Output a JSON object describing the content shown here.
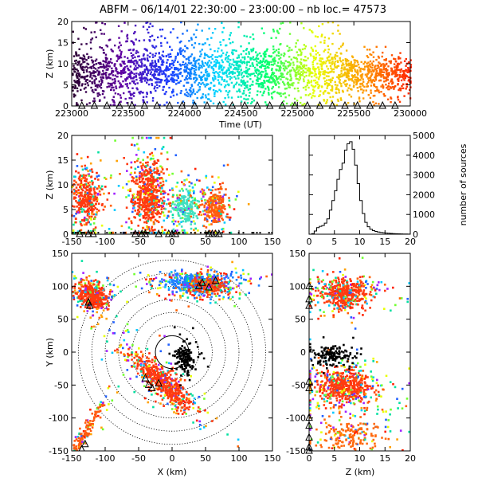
{
  "title": "ABFM – 06/14/01 22:30:00 – 23:00:00 – nb loc.=  47573",
  "chart_data": [
    {
      "id": "time-height",
      "type": "scatter",
      "xlabel": "Time (UT)",
      "ylabel": "Z (km)",
      "xlim": [
        223000,
        230000
      ],
      "ylim": [
        0,
        20
      ],
      "xticks": [
        "223000",
        "223500",
        "224000",
        "224500",
        "225000",
        "225500",
        "230000"
      ],
      "yticks": [
        "0",
        "5",
        "10",
        "15",
        "20"
      ],
      "color_by": "time",
      "colormap": [
        "#2a0030",
        "#6000a0",
        "#1a3cff",
        "#00d8ff",
        "#00ff70",
        "#e8ff00",
        "#ff9a00",
        "#ff2000"
      ]
    },
    {
      "id": "xz-projection",
      "type": "scatter",
      "ylabel": "Z (km)",
      "xlim": [
        -150,
        150
      ],
      "ylim": [
        0,
        20
      ],
      "xticks": [
        "-150",
        "-100",
        "-50",
        "0",
        "50",
        "100",
        "150"
      ],
      "yticks": [
        "0",
        "5",
        "10",
        "15",
        "20"
      ]
    },
    {
      "id": "height-histogram",
      "type": "bar",
      "ylabel": "number of sources",
      "xlim": [
        0,
        20
      ],
      "ylim": [
        0,
        5000
      ],
      "xticks": [
        "0",
        "5",
        "10",
        "15",
        "20"
      ],
      "yticks": [
        "0",
        "1000",
        "2000",
        "3000",
        "4000",
        "5000"
      ],
      "bin_width_km": 0.5,
      "counts": [
        0,
        30,
        160,
        330,
        400,
        440,
        560,
        780,
        1220,
        1700,
        2200,
        2780,
        3280,
        3600,
        4260,
        4580,
        4680,
        4300,
        3500,
        2560,
        1700,
        1050,
        600,
        380,
        250,
        180,
        140,
        110,
        90,
        75,
        60,
        48,
        40,
        32,
        26,
        22,
        18,
        14,
        10,
        6
      ]
    },
    {
      "id": "plan-view",
      "type": "scatter",
      "xlabel": "X (km)",
      "ylabel": "Y (km)",
      "xlim": [
        -150,
        150
      ],
      "ylim": [
        -150,
        150
      ],
      "xticks": [
        "-150",
        "-100",
        "-50",
        "0",
        "50",
        "100",
        "150"
      ],
      "yticks": [
        "-150",
        "-100",
        "-50",
        "0",
        "50",
        "100",
        "150"
      ],
      "range_rings_km": [
        40,
        60,
        80,
        100,
        120,
        140
      ],
      "solid_ring_km": 25
    },
    {
      "id": "zy-projection",
      "type": "scatter",
      "xlabel": "Z (km)",
      "xlim": [
        0,
        20
      ],
      "ylim": [
        -150,
        150
      ],
      "xticks": [
        "0",
        "5",
        "10",
        "15",
        "20"
      ],
      "yticks": [
        "-150",
        "-100",
        "-50",
        "0",
        "50",
        "100",
        "150"
      ]
    }
  ]
}
